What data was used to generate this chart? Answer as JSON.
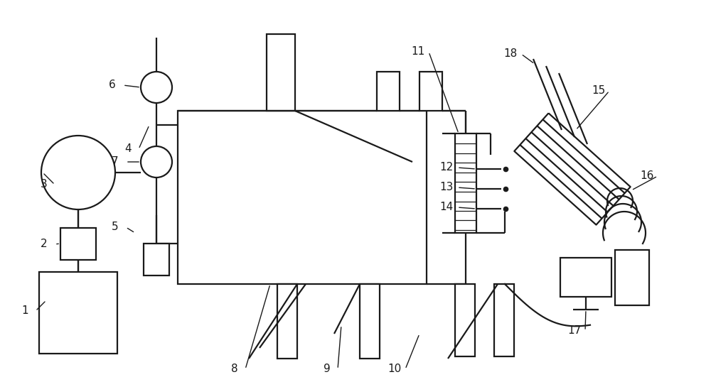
{
  "bg_color": "#ffffff",
  "line_color": "#1a1a1a",
  "lw": 1.6,
  "fig_w": 10.0,
  "fig_h": 5.38
}
